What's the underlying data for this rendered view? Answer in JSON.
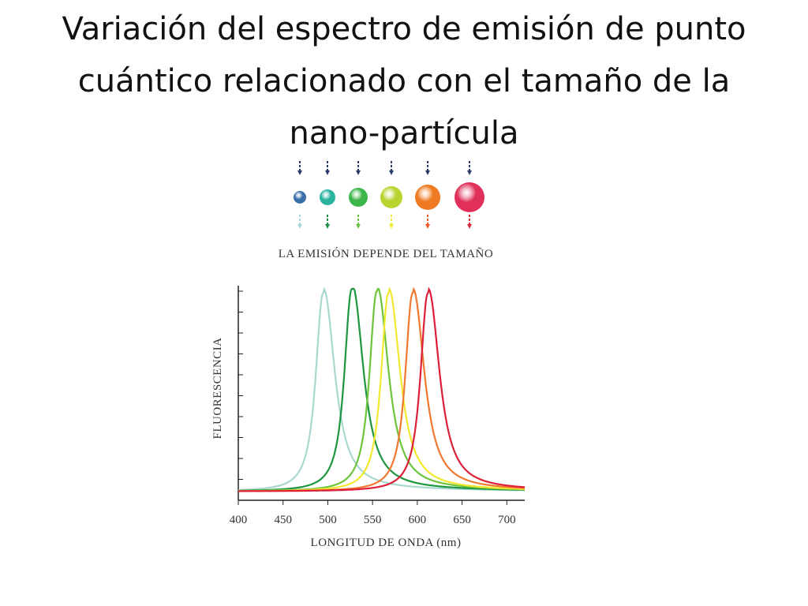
{
  "slide": {
    "title": "Variación del espectro de emisión de punto cuántico relacionado con el tamaño de la nano-partícula"
  },
  "illustration": {
    "caption": "LA EMISIÓN DEPENDE DEL TAMAÑO",
    "dots": [
      {
        "color": "#3a6fa8",
        "emission_color": "#a9d8d8"
      },
      {
        "color": "#2bb3a0",
        "emission_color": "#1f8f4a"
      },
      {
        "color": "#3cb54a",
        "emission_color": "#6cc644"
      },
      {
        "color": "#b8d430",
        "emission_color": "#f0ea3a"
      },
      {
        "color": "#f07a22",
        "emission_color": "#f05a22"
      },
      {
        "color": "#e0305a",
        "emission_color": "#d82a3a"
      }
    ]
  },
  "chart_data": {
    "type": "line",
    "title": "",
    "xlabel": "LONGITUD DE ONDA (nm)",
    "ylabel": "FLUORESCENCIA",
    "xlim": [
      400,
      720
    ],
    "ylim": [
      0,
      1
    ],
    "x_ticks": [
      400,
      450,
      500,
      550,
      600,
      650,
      700
    ],
    "grid": false,
    "legend": "none",
    "series": [
      {
        "peak": 495,
        "color": "#a8d8d0",
        "peak_value": 0.98
      },
      {
        "peak": 527,
        "color": "#1e9640",
        "peak_value": 1.0
      },
      {
        "peak": 555,
        "color": "#6ec43a",
        "peak_value": 0.99
      },
      {
        "peak": 568,
        "color": "#f2e830",
        "peak_value": 0.98
      },
      {
        "peak": 595,
        "color": "#f07830",
        "peak_value": 0.98
      },
      {
        "peak": 612,
        "color": "#dc2038",
        "peak_value": 0.98
      }
    ]
  }
}
